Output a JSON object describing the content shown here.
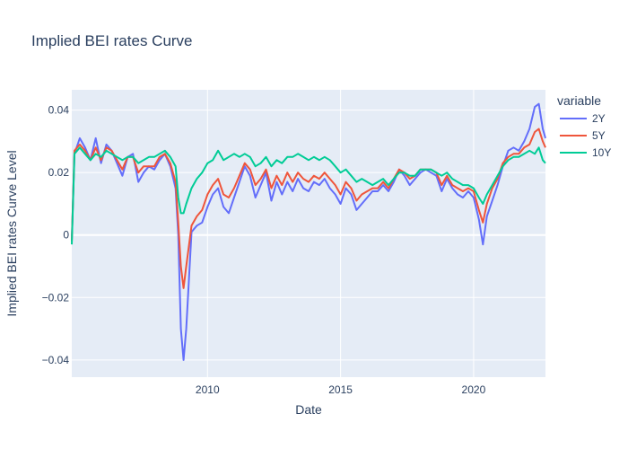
{
  "chart_data": {
    "type": "line",
    "title": "Implied BEI rates Curve",
    "xlabel": "Date",
    "ylabel": "Implied BEI rates Curve Level",
    "x_range": [
      2004.9,
      2022.7
    ],
    "ylim": [
      -0.0455,
      0.0465
    ],
    "x_ticks": [
      {
        "value": 2010,
        "label": "2010"
      },
      {
        "value": 2015,
        "label": "2015"
      },
      {
        "value": 2020,
        "label": "2020"
      }
    ],
    "y_ticks": [
      {
        "value": -0.04,
        "label": "−0.04"
      },
      {
        "value": -0.02,
        "label": "−0.02"
      },
      {
        "value": 0,
        "label": "0"
      },
      {
        "value": 0.02,
        "label": "0.02"
      },
      {
        "value": 0.04,
        "label": "0.04"
      }
    ],
    "grid": true,
    "legend": {
      "title": "variable",
      "placement": "top-right"
    },
    "x": [
      2004.9,
      2005.0,
      2005.2,
      2005.4,
      2005.6,
      2005.8,
      2006.0,
      2006.2,
      2006.4,
      2006.6,
      2006.8,
      2007.0,
      2007.2,
      2007.4,
      2007.6,
      2007.8,
      2008.0,
      2008.2,
      2008.4,
      2008.6,
      2008.8,
      2008.9,
      2009.0,
      2009.1,
      2009.2,
      2009.4,
      2009.6,
      2009.8,
      2010.0,
      2010.2,
      2010.4,
      2010.6,
      2010.8,
      2011.0,
      2011.2,
      2011.4,
      2011.6,
      2011.8,
      2012.0,
      2012.2,
      2012.4,
      2012.6,
      2012.8,
      2013.0,
      2013.2,
      2013.4,
      2013.6,
      2013.8,
      2014.0,
      2014.2,
      2014.4,
      2014.6,
      2014.8,
      2015.0,
      2015.2,
      2015.4,
      2015.6,
      2015.8,
      2016.0,
      2016.2,
      2016.4,
      2016.6,
      2016.8,
      2017.0,
      2017.2,
      2017.4,
      2017.6,
      2017.8,
      2018.0,
      2018.2,
      2018.4,
      2018.6,
      2018.8,
      2019.0,
      2019.2,
      2019.4,
      2019.6,
      2019.8,
      2020.0,
      2020.2,
      2020.35,
      2020.5,
      2020.7,
      2020.9,
      2021.1,
      2021.3,
      2021.5,
      2021.7,
      2021.9,
      2022.1,
      2022.3,
      2022.45,
      2022.6,
      2022.7
    ],
    "series": [
      {
        "name": "2Y",
        "color": "#636efa",
        "values": [
          -0.002,
          0.026,
          0.031,
          0.028,
          0.024,
          0.031,
          0.023,
          0.029,
          0.027,
          0.023,
          0.019,
          0.025,
          0.026,
          0.017,
          0.02,
          0.022,
          0.021,
          0.024,
          0.026,
          0.022,
          0.015,
          0.0,
          -0.03,
          -0.04,
          -0.03,
          0.001,
          0.003,
          0.004,
          0.009,
          0.013,
          0.015,
          0.009,
          0.007,
          0.012,
          0.017,
          0.022,
          0.019,
          0.012,
          0.016,
          0.02,
          0.011,
          0.017,
          0.013,
          0.017,
          0.014,
          0.018,
          0.015,
          0.014,
          0.017,
          0.016,
          0.018,
          0.015,
          0.013,
          0.01,
          0.015,
          0.013,
          0.008,
          0.01,
          0.012,
          0.014,
          0.014,
          0.016,
          0.014,
          0.017,
          0.021,
          0.019,
          0.016,
          0.018,
          0.02,
          0.021,
          0.02,
          0.019,
          0.014,
          0.018,
          0.015,
          0.013,
          0.012,
          0.014,
          0.012,
          0.005,
          -0.003,
          0.006,
          0.011,
          0.016,
          0.022,
          0.027,
          0.028,
          0.027,
          0.03,
          0.034,
          0.041,
          0.042,
          0.034,
          0.031
        ]
      },
      {
        "name": "5Y",
        "color": "#ef553b",
        "values": [
          -0.002,
          0.027,
          0.029,
          0.027,
          0.024,
          0.028,
          0.024,
          0.028,
          0.027,
          0.024,
          0.021,
          0.025,
          0.025,
          0.02,
          0.022,
          0.022,
          0.022,
          0.025,
          0.026,
          0.023,
          0.017,
          0.004,
          -0.01,
          -0.017,
          -0.01,
          0.003,
          0.006,
          0.008,
          0.013,
          0.016,
          0.018,
          0.013,
          0.012,
          0.015,
          0.019,
          0.023,
          0.021,
          0.016,
          0.018,
          0.021,
          0.015,
          0.019,
          0.016,
          0.02,
          0.017,
          0.02,
          0.018,
          0.017,
          0.019,
          0.018,
          0.02,
          0.018,
          0.016,
          0.013,
          0.017,
          0.015,
          0.011,
          0.013,
          0.014,
          0.015,
          0.015,
          0.017,
          0.015,
          0.018,
          0.021,
          0.02,
          0.018,
          0.019,
          0.021,
          0.021,
          0.021,
          0.02,
          0.016,
          0.019,
          0.016,
          0.015,
          0.014,
          0.015,
          0.014,
          0.008,
          0.004,
          0.01,
          0.015,
          0.018,
          0.023,
          0.025,
          0.026,
          0.026,
          0.028,
          0.029,
          0.033,
          0.034,
          0.03,
          0.028
        ]
      },
      {
        "name": "10Y",
        "color": "#00cc96",
        "values": [
          -0.003,
          0.026,
          0.028,
          0.026,
          0.024,
          0.026,
          0.025,
          0.027,
          0.026,
          0.025,
          0.024,
          0.025,
          0.025,
          0.023,
          0.024,
          0.025,
          0.025,
          0.026,
          0.027,
          0.025,
          0.022,
          0.012,
          0.007,
          0.007,
          0.01,
          0.015,
          0.018,
          0.02,
          0.023,
          0.024,
          0.027,
          0.024,
          0.025,
          0.026,
          0.025,
          0.026,
          0.025,
          0.022,
          0.023,
          0.025,
          0.022,
          0.024,
          0.023,
          0.025,
          0.025,
          0.026,
          0.025,
          0.024,
          0.025,
          0.024,
          0.025,
          0.024,
          0.022,
          0.02,
          0.021,
          0.019,
          0.017,
          0.018,
          0.017,
          0.016,
          0.017,
          0.018,
          0.016,
          0.018,
          0.02,
          0.02,
          0.019,
          0.019,
          0.021,
          0.021,
          0.021,
          0.02,
          0.019,
          0.02,
          0.018,
          0.017,
          0.016,
          0.016,
          0.015,
          0.012,
          0.01,
          0.013,
          0.016,
          0.019,
          0.022,
          0.024,
          0.025,
          0.025,
          0.026,
          0.027,
          0.026,
          0.028,
          0.024,
          0.023
        ]
      }
    ]
  }
}
